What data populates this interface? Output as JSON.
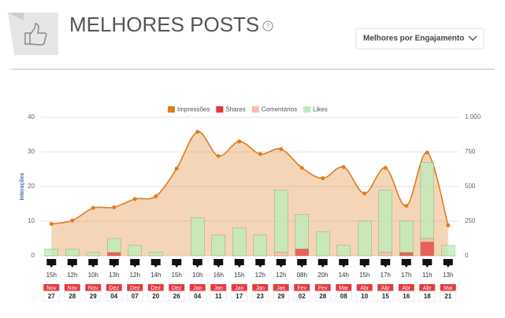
{
  "header": {
    "title": "MELHORES POSTS",
    "help": "?",
    "dropdown": "Melhores por Engajamento"
  },
  "chart_data": {
    "type": "combo",
    "y_label": "Interações",
    "times": [
      "15h",
      "12h",
      "10h",
      "13h",
      "12h",
      "14h",
      "15h",
      "10h",
      "16h",
      "15h",
      "12h",
      "12h",
      "08h",
      "20h",
      "14h",
      "15h",
      "17h",
      "17h",
      "11h",
      "13h"
    ],
    "months": [
      "Nov",
      "Nov",
      "Nov",
      "Dez",
      "Dez",
      "Dez",
      "Dez",
      "Jan",
      "Jan",
      "Jan",
      "Jan",
      "Jan",
      "Fev",
      "Fev",
      "Mar",
      "Abr",
      "Abr",
      "Abr",
      "Abr",
      "Mai"
    ],
    "days": [
      "27",
      "28",
      "29",
      "04",
      "07",
      "20",
      "26",
      "04",
      "11",
      "17",
      "23",
      "29",
      "02",
      "28",
      "08",
      "10",
      "15",
      "16",
      "18",
      "21"
    ],
    "series": [
      {
        "name": "Impressões",
        "kind": "area",
        "axis": "y2",
        "color": "#e07b1f",
        "values": [
          230,
          255,
          345,
          350,
          410,
          430,
          630,
          895,
          720,
          825,
          735,
          770,
          635,
          560,
          640,
          450,
          635,
          360,
          745,
          220
        ]
      },
      {
        "name": "Shares",
        "kind": "bar",
        "color": "#e8383b",
        "values": [
          0,
          0,
          0,
          1,
          0,
          0,
          0,
          0,
          0,
          0,
          0,
          0,
          2,
          0,
          0,
          0,
          0,
          1,
          4,
          0
        ]
      },
      {
        "name": "Comentários",
        "kind": "bar",
        "color": "#f7b8b3",
        "values": [
          0,
          0,
          0,
          0,
          0,
          0,
          0,
          0,
          0,
          0,
          0,
          1,
          0,
          0,
          0,
          0,
          1,
          0,
          1,
          0
        ]
      },
      {
        "name": "Likes",
        "kind": "bar",
        "color": "#b9ecb9",
        "values": [
          2,
          2,
          1,
          4,
          3,
          1,
          0,
          11,
          6,
          8,
          6,
          18,
          10,
          7,
          3,
          10,
          18,
          9,
          22,
          3
        ]
      }
    ],
    "ylim": [
      0,
      40
    ],
    "yticks": [
      0,
      10,
      20,
      30,
      40
    ],
    "y2lim": [
      0,
      1000
    ],
    "y2ticks": [
      0,
      250,
      500,
      750,
      {
        "value": 1000,
        "label": "1.000"
      }
    ],
    "grid": true
  }
}
